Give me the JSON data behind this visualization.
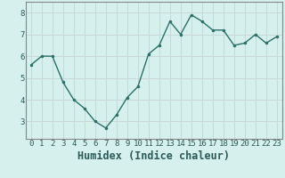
{
  "x": [
    0,
    1,
    2,
    3,
    4,
    5,
    6,
    7,
    8,
    9,
    10,
    11,
    12,
    13,
    14,
    15,
    16,
    17,
    18,
    19,
    20,
    21,
    22,
    23
  ],
  "y": [
    5.6,
    6.0,
    6.0,
    4.8,
    4.0,
    3.6,
    3.0,
    2.7,
    3.3,
    4.1,
    4.6,
    6.1,
    6.5,
    7.6,
    7.0,
    7.9,
    7.6,
    7.2,
    7.2,
    6.5,
    6.6,
    7.0,
    6.6,
    6.9
  ],
  "xlabel": "Humidex (Indice chaleur)",
  "ylabel": "",
  "xlim": [
    -0.5,
    23.5
  ],
  "ylim": [
    2.2,
    8.5
  ],
  "yticks": [
    3,
    4,
    5,
    6,
    7,
    8
  ],
  "xticks": [
    0,
    1,
    2,
    3,
    4,
    5,
    6,
    7,
    8,
    9,
    10,
    11,
    12,
    13,
    14,
    15,
    16,
    17,
    18,
    19,
    20,
    21,
    22,
    23
  ],
  "line_color": "#2d7068",
  "marker_color": "#2d7068",
  "bg_color": "#d6f0ee",
  "grid_color_major": "#c0ddd9",
  "axis_color": "#2d5a56",
  "xlabel_fontsize": 8.5,
  "tick_fontsize": 6.5
}
